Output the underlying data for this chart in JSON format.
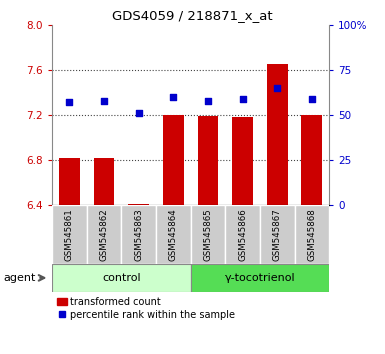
{
  "title": "GDS4059 / 218871_x_at",
  "samples": [
    "GSM545861",
    "GSM545862",
    "GSM545863",
    "GSM545864",
    "GSM545865",
    "GSM545866",
    "GSM545867",
    "GSM545868"
  ],
  "bar_values": [
    6.82,
    6.82,
    6.41,
    7.2,
    7.19,
    7.18,
    7.65,
    7.2
  ],
  "dot_values": [
    57,
    58,
    51,
    60,
    58,
    59,
    65,
    59
  ],
  "ylim_left": [
    6.4,
    8.0
  ],
  "ylim_right": [
    0,
    100
  ],
  "yticks_left": [
    6.4,
    6.8,
    7.2,
    7.6,
    8.0
  ],
  "yticks_right": [
    0,
    25,
    50,
    75,
    100
  ],
  "ytick_labels_right": [
    "0",
    "25",
    "50",
    "75",
    "100%"
  ],
  "bar_color": "#cc0000",
  "dot_color": "#0000cc",
  "bar_bottom": 6.4,
  "groups": [
    {
      "label": "control",
      "indices": [
        0,
        1,
        2,
        3
      ],
      "facecolor": "#ccffcc",
      "edgecolor": "#888888"
    },
    {
      "label": "γ-tocotrienol",
      "indices": [
        4,
        5,
        6,
        7
      ],
      "facecolor": "#55dd55",
      "edgecolor": "#888888"
    }
  ],
  "agent_label": "agent",
  "legend_bar_label": "transformed count",
  "legend_dot_label": "percentile rank within the sample",
  "tick_label_color_left": "#cc0000",
  "tick_label_color_right": "#0000cc",
  "sample_area_color": "#cccccc",
  "bar_width": 0.6,
  "grid_yticks": [
    6.8,
    7.2,
    7.6
  ]
}
